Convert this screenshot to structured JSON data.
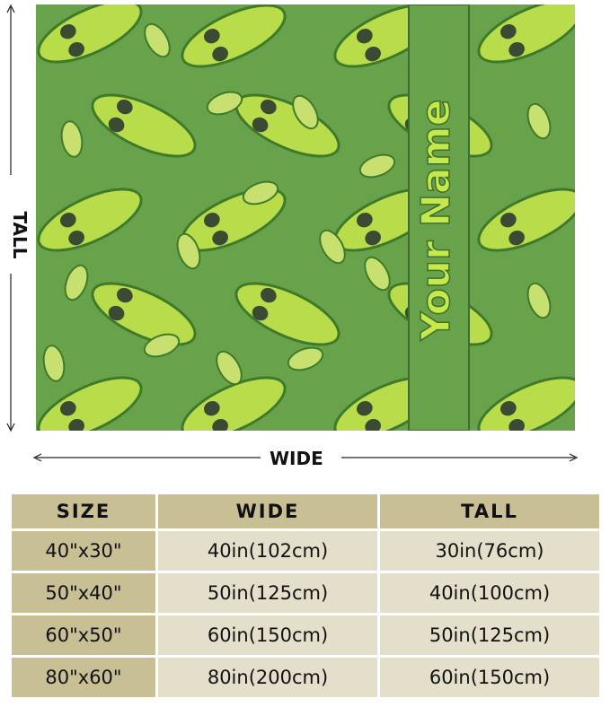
{
  "product": {
    "personalized_text": "Your Name",
    "colors": {
      "background": "#68a34b",
      "pickle": "#b9dc4a",
      "pickle_outline": "#3f7a2b",
      "stripe_text": "#c5e84a",
      "sunglasses": "#3a4a33"
    }
  },
  "dimensions": {
    "tall_label": "TALL",
    "wide_label": "WIDE"
  },
  "size_table": {
    "headers": [
      "SIZE",
      "WIDE",
      "TALL"
    ],
    "rows": [
      [
        "40\"x30\"",
        "40in(102cm)",
        "30in(76cm)"
      ],
      [
        "50\"x40\"",
        "50in(125cm)",
        "40in(100cm)"
      ],
      [
        "60\"x50\"",
        "60in(150cm)",
        "50in(125cm)"
      ],
      [
        "80\"x60\"",
        "80in(200cm)",
        "60in(150cm)"
      ]
    ]
  }
}
